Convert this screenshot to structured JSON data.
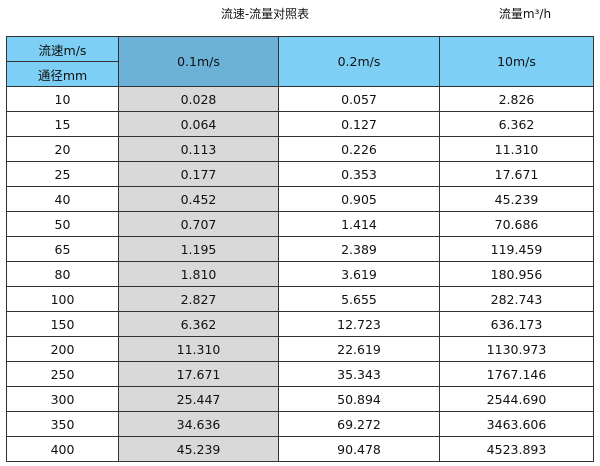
{
  "title": "流速-流量对照表",
  "unit_label": "流量m³/h",
  "colors": {
    "header": "#7ecff5",
    "highlight_header": "#6cb2d6",
    "highlight_column": "#d9d9d9"
  },
  "table": {
    "corner_top": "流速m/s",
    "corner_bottom": "通径mm",
    "columns": [
      "0.1m/s",
      "0.2m/s",
      "10m/s"
    ],
    "rows": [
      [
        "10",
        "0.028",
        "0.057",
        "2.826"
      ],
      [
        "15",
        "0.064",
        "0.127",
        "6.362"
      ],
      [
        "20",
        "0.113",
        "0.226",
        "11.310"
      ],
      [
        "25",
        "0.177",
        "0.353",
        "17.671"
      ],
      [
        "40",
        "0.452",
        "0.905",
        "45.239"
      ],
      [
        "50",
        "0.707",
        "1.414",
        "70.686"
      ],
      [
        "65",
        "1.195",
        "2.389",
        "119.459"
      ],
      [
        "80",
        "1.810",
        "3.619",
        "180.956"
      ],
      [
        "100",
        "2.827",
        "5.655",
        "282.743"
      ],
      [
        "150",
        "6.362",
        "12.723",
        "636.173"
      ],
      [
        "200",
        "11.310",
        "22.619",
        "1130.973"
      ],
      [
        "250",
        "17.671",
        "35.343",
        "1767.146"
      ],
      [
        "300",
        "25.447",
        "50.894",
        "2544.690"
      ],
      [
        "350",
        "34.636",
        "69.272",
        "3463.606"
      ],
      [
        "400",
        "45.239",
        "90.478",
        "4523.893"
      ]
    ]
  }
}
